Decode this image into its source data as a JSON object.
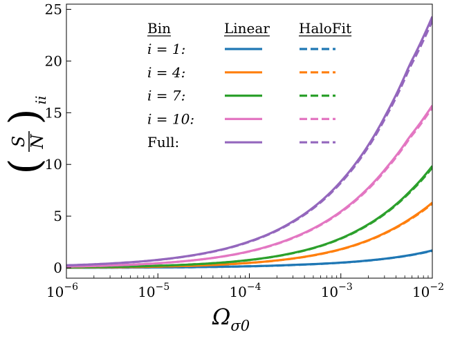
{
  "chart_data": {
    "type": "line",
    "xscale": "log",
    "xlim": [
      1e-06,
      0.01
    ],
    "ylim": [
      -1,
      25.5
    ],
    "x_ticks": [
      {
        "value": 1e-06,
        "base": "10",
        "exp": "−6"
      },
      {
        "value": 1e-05,
        "base": "10",
        "exp": "−5"
      },
      {
        "value": 0.0001,
        "base": "10",
        "exp": "−4"
      },
      {
        "value": 0.001,
        "base": "10",
        "exp": "−3"
      },
      {
        "value": 0.01,
        "base": "10",
        "exp": "−2"
      }
    ],
    "y_ticks": [
      0,
      5,
      10,
      15,
      20,
      25
    ],
    "xlabel": {
      "main": "Ω",
      "sub": "σ0"
    },
    "ylabel": {
      "num": "S",
      "den": "N",
      "sub": "ii"
    },
    "grid": false,
    "legend": {
      "placement": "top-center",
      "headers": [
        "Bin",
        "Linear",
        "HaloFit"
      ]
    },
    "x": [
      1e-06,
      1.78e-06,
      3.16e-06,
      5.62e-06,
      1e-05,
      1.78e-05,
      3.16e-05,
      5.62e-05,
      0.0001,
      0.000178,
      0.000316,
      0.000562,
      0.001,
      0.00178,
      0.00316,
      0.00562,
      0.01
    ],
    "series": [
      {
        "name": "i = 1:",
        "color": "#1f77b4",
        "linear": [
          0.01,
          0.01,
          0.02,
          0.03,
          0.04,
          0.05,
          0.08,
          0.11,
          0.15,
          0.21,
          0.29,
          0.38,
          0.5,
          0.67,
          0.9,
          1.22,
          1.68
        ],
        "halofit": [
          0.01,
          0.01,
          0.02,
          0.03,
          0.04,
          0.05,
          0.08,
          0.11,
          0.15,
          0.2,
          0.28,
          0.37,
          0.49,
          0.66,
          0.89,
          1.2,
          1.65
        ]
      },
      {
        "name": "i = 4:",
        "color": "#ff7f0e",
        "linear": [
          0.03,
          0.04,
          0.06,
          0.08,
          0.12,
          0.17,
          0.24,
          0.34,
          0.48,
          0.67,
          0.93,
          1.3,
          1.8,
          2.5,
          3.45,
          4.7,
          6.3
        ],
        "halofit": [
          0.03,
          0.04,
          0.06,
          0.08,
          0.12,
          0.17,
          0.24,
          0.34,
          0.47,
          0.66,
          0.92,
          1.28,
          1.78,
          2.47,
          3.41,
          4.64,
          6.22
        ]
      },
      {
        "name": "i = 7:",
        "color": "#2ca02c",
        "linear": [
          0.05,
          0.07,
          0.1,
          0.14,
          0.2,
          0.28,
          0.39,
          0.54,
          0.76,
          1.06,
          1.48,
          2.05,
          2.85,
          3.95,
          5.4,
          7.35,
          9.85
        ],
        "halofit": [
          0.05,
          0.07,
          0.1,
          0.14,
          0.2,
          0.28,
          0.39,
          0.54,
          0.75,
          1.05,
          1.46,
          2.03,
          2.82,
          3.9,
          5.34,
          7.26,
          9.7
        ]
      },
      {
        "name": "i = 10:",
        "color": "#e377c2",
        "linear": [
          0.12,
          0.17,
          0.23,
          0.32,
          0.44,
          0.61,
          0.84,
          1.16,
          1.6,
          2.2,
          3.0,
          4.05,
          5.45,
          7.3,
          9.7,
          12.65,
          15.7
        ],
        "halofit": [
          0.12,
          0.17,
          0.23,
          0.32,
          0.44,
          0.61,
          0.84,
          1.15,
          1.58,
          2.17,
          2.96,
          4.0,
          5.38,
          7.2,
          9.57,
          12.5,
          15.5
        ]
      },
      {
        "name": "Full:",
        "color": "#9467bd",
        "linear": [
          0.24,
          0.32,
          0.43,
          0.57,
          0.77,
          1.04,
          1.4,
          1.88,
          2.55,
          3.42,
          4.62,
          6.2,
          8.35,
          11.2,
          14.95,
          19.6,
          24.3
        ],
        "halofit": [
          0.24,
          0.32,
          0.43,
          0.57,
          0.76,
          1.03,
          1.38,
          1.86,
          2.51,
          3.38,
          4.55,
          6.11,
          8.22,
          11.03,
          14.72,
          19.3,
          23.9
        ]
      }
    ]
  }
}
